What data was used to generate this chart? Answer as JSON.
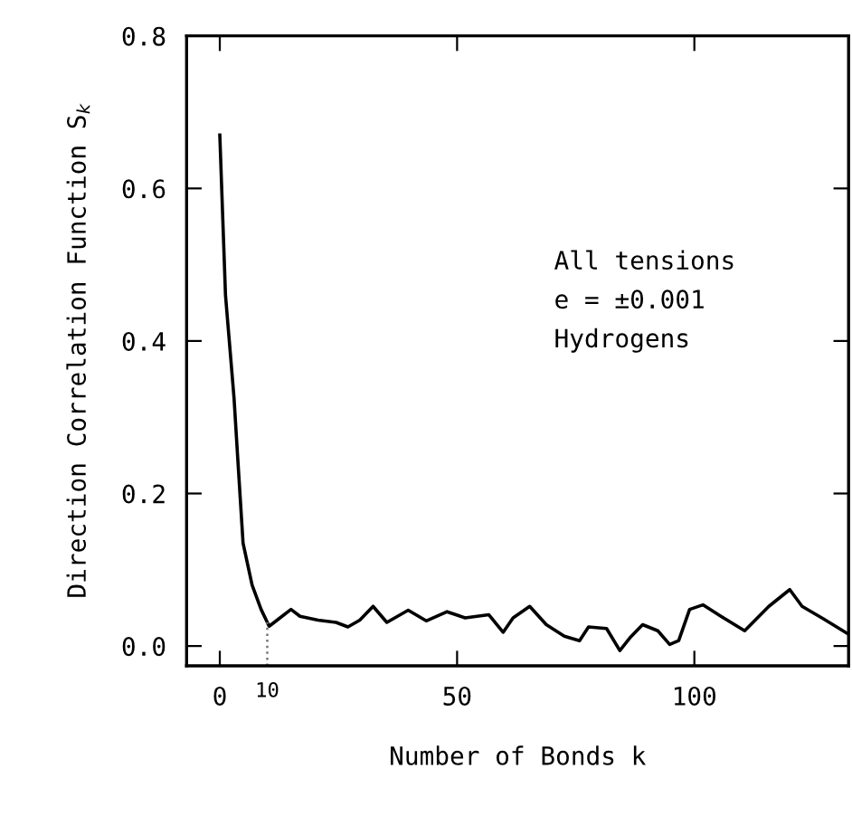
{
  "chart_data": {
    "type": "line",
    "xlabel": "Number of Bonds k",
    "ylabel": "Direction Correlation Function S$_{k}$",
    "annotations": [
      "All tensions",
      "e = ±0.001",
      "Hydrogens"
    ],
    "x": [
      0,
      1.2,
      3.0,
      3.7,
      4.9,
      6.8,
      8.7,
      10.4,
      12.5,
      15.0,
      16.9,
      20.7,
      24.5,
      27.0,
      29.5,
      32.3,
      35.2,
      39.7,
      43.5,
      47.9,
      51.7,
      56.7,
      59.7,
      61.8,
      65.3,
      68.8,
      72.6,
      75.8,
      77.7,
      81.5,
      84.3,
      86.6,
      89.1,
      92.3,
      94.8,
      96.7,
      99.0,
      101.8,
      105.6,
      110.6,
      115.7,
      120.1,
      122.7,
      127.1,
      132.1
    ],
    "series": [
      {
        "color": "#000000",
        "values": [
          0.67,
          0.46,
          0.325,
          0.254,
          0.135,
          0.08,
          0.048,
          0.026,
          0.036,
          0.048,
          0.039,
          0.034,
          0.031,
          0.025,
          0.034,
          0.052,
          0.031,
          0.047,
          0.033,
          0.045,
          0.037,
          0.041,
          0.018,
          0.037,
          0.052,
          0.028,
          0.013,
          0.007,
          0.025,
          0.023,
          -0.006,
          0.012,
          0.028,
          0.02,
          0.002,
          0.007,
          0.048,
          0.054,
          0.039,
          0.02,
          0.052,
          0.074,
          0.052,
          0.036,
          0.017
        ]
      }
    ],
    "xlim": [
      -7,
      132.5
    ],
    "xticks": [
      0,
      50,
      100
    ],
    "ylim": [
      -0.026,
      0.8
    ],
    "yticks": [
      {
        "value": 0,
        "label": "0.0"
      },
      0.2,
      0.4,
      0.6,
      0.8
    ],
    "ref_lines": [
      {
        "axis": "x",
        "value": 10,
        "label": "10",
        "line_style": "dotted",
        "color": "#777777"
      }
    ],
    "grid": false,
    "legend": false,
    "marker": "none",
    "line_style": "solid"
  }
}
